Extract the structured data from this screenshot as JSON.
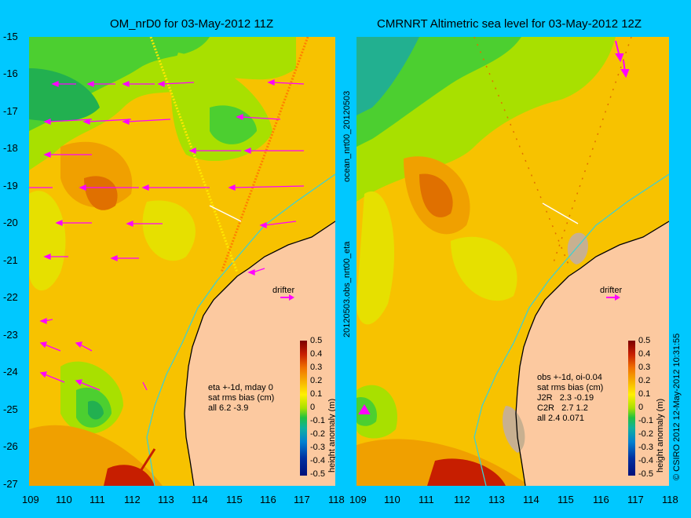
{
  "left_panel": {
    "title": "OM_nrD0 for 03-May-2012 11Z",
    "annotation": "eta +-1d, mday 0\nsat rms bias (cm)\nall 6.2 -3.9",
    "drifter_label": "drifter",
    "side_label": "20120503.obs_nrt00_eta",
    "side_label_top": "ocean_nrt00_20120503"
  },
  "right_panel": {
    "title": "CMRNRT Altimetric sea level  for 03-May-2012 12Z",
    "annotation": "obs +-1d, oi-0.04\nsat rms bias (cm)\nJ2R   2.3 -0.19\nC2R   2.7 1.2\nall 2.4 0.071",
    "drifter_label": "drifter",
    "side_label": "© CSIRO 2012  12-May-2012 10:31:55"
  },
  "y_ticks": [
    "-15",
    "-16",
    "-17",
    "-18",
    "-19",
    "-20",
    "-21",
    "-22",
    "-23",
    "-24",
    "-25",
    "-26",
    "-27"
  ],
  "x_ticks_left": [
    "109",
    "110",
    "111",
    "112",
    "113",
    "114",
    "115",
    "116",
    "117",
    "118"
  ],
  "x_ticks_right": [
    "109",
    "110",
    "111",
    "112",
    "113",
    "114",
    "115",
    "116",
    "117",
    "118"
  ],
  "colorbar": {
    "labels": [
      "0.5",
      "0.4",
      "0.3",
      "0.2",
      "0.1",
      "0",
      "-0.1",
      "-0.2",
      "-0.3",
      "-0.4",
      "-0.5"
    ],
    "axis_label": "height anomaly (m)"
  },
  "colors": {
    "background": "#00c8ff",
    "land": "#fcc9a0",
    "arrow": "#ff00ff",
    "coastline": "#000000",
    "current_line": "#40d0d0"
  }
}
